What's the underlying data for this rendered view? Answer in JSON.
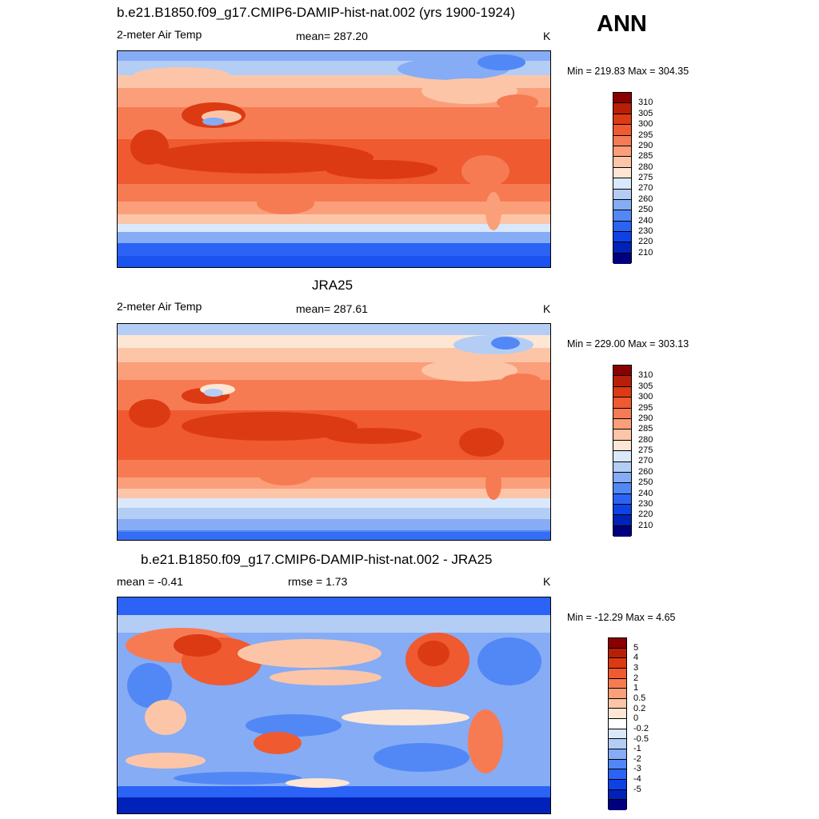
{
  "season": "ANN",
  "colors": {
    "temp_scale": [
      "#00007e",
      "#0022b8",
      "#0c42e6",
      "#2a63f5",
      "#5288f5",
      "#85acf5",
      "#b4cdf5",
      "#d9e8fa",
      "#fde6d4",
      "#fcc5a8",
      "#fb9f7a",
      "#f67b52",
      "#ef5a30",
      "#dc3a13",
      "#b81f06",
      "#8a0000"
    ],
    "diff_scale": [
      "#00007e",
      "#0022b8",
      "#0c42e6",
      "#2a63f5",
      "#5288f5",
      "#85acf5",
      "#b4cdf5",
      "#d9e8fa",
      "#ffffff",
      "#fde6d4",
      "#fcc5a8",
      "#fb9f7a",
      "#f67b52",
      "#ef5a30",
      "#dc3a13",
      "#b81f06",
      "#8a0000"
    ]
  },
  "panels": [
    {
      "title": "b.e21.B1850.f09_g17.CMIP6-DAMIP-hist-nat.002 (yrs 1900-1924)",
      "left_label": "2-meter Air Temp",
      "center_label": "mean= 287.20",
      "units": "K",
      "minmax": "Min = 219.83 Max = 304.35",
      "colorbar_labels": [
        "310",
        "305",
        "300",
        "295",
        "290",
        "285",
        "280",
        "275",
        "270",
        "260",
        "250",
        "240",
        "230",
        "220",
        "210"
      ]
    },
    {
      "title": "JRA25",
      "left_label": "2-meter Air Temp",
      "center_label": "mean= 287.61",
      "units": "K",
      "minmax": "Min = 229.00 Max = 303.13",
      "colorbar_labels": [
        "310",
        "305",
        "300",
        "295",
        "290",
        "285",
        "280",
        "275",
        "270",
        "260",
        "250",
        "240",
        "230",
        "220",
        "210"
      ]
    },
    {
      "title": "b.e21.B1850.f09_g17.CMIP6-DAMIP-hist-nat.002 - JRA25",
      "left_label": "mean =  -0.41",
      "center_label": "rmse =   1.73",
      "units": "K",
      "minmax": "Min = -12.29 Max =   4.65",
      "colorbar_labels": [
        "5",
        "4",
        "3",
        "2",
        "1",
        "0.5",
        "0.2",
        "0",
        "-0.2",
        "-0.5",
        "-1",
        "-2",
        "-3",
        "-4",
        "-5"
      ]
    }
  ]
}
